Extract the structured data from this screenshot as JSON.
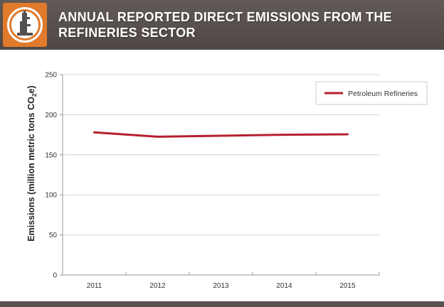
{
  "header": {
    "title": "ANNUAL REPORTED DIRECT EMISSIONS FROM THE REFINERIES SECTOR",
    "logo_icon": "refinery-tower-icon"
  },
  "colors": {
    "header_bg": "#555050",
    "logo_bg": "#e07a2c",
    "series_line": "#b5202e"
  },
  "chart_data": {
    "type": "line",
    "x": [
      "2011",
      "2012",
      "2013",
      "2014",
      "2015"
    ],
    "series": [
      {
        "name": "Petroleum Refineries",
        "values": [
          178.0,
          172.5,
          173.8,
          175.0,
          175.5
        ]
      }
    ],
    "ylabel_main": "Emissions (million metric tons CO",
    "ylabel_sub": "2",
    "ylabel_end": "e)",
    "ylim": [
      0,
      250
    ],
    "yticks": [
      "0",
      "50",
      "100",
      "150",
      "200",
      "250"
    ],
    "grid": true,
    "legend_position": "top-right"
  }
}
